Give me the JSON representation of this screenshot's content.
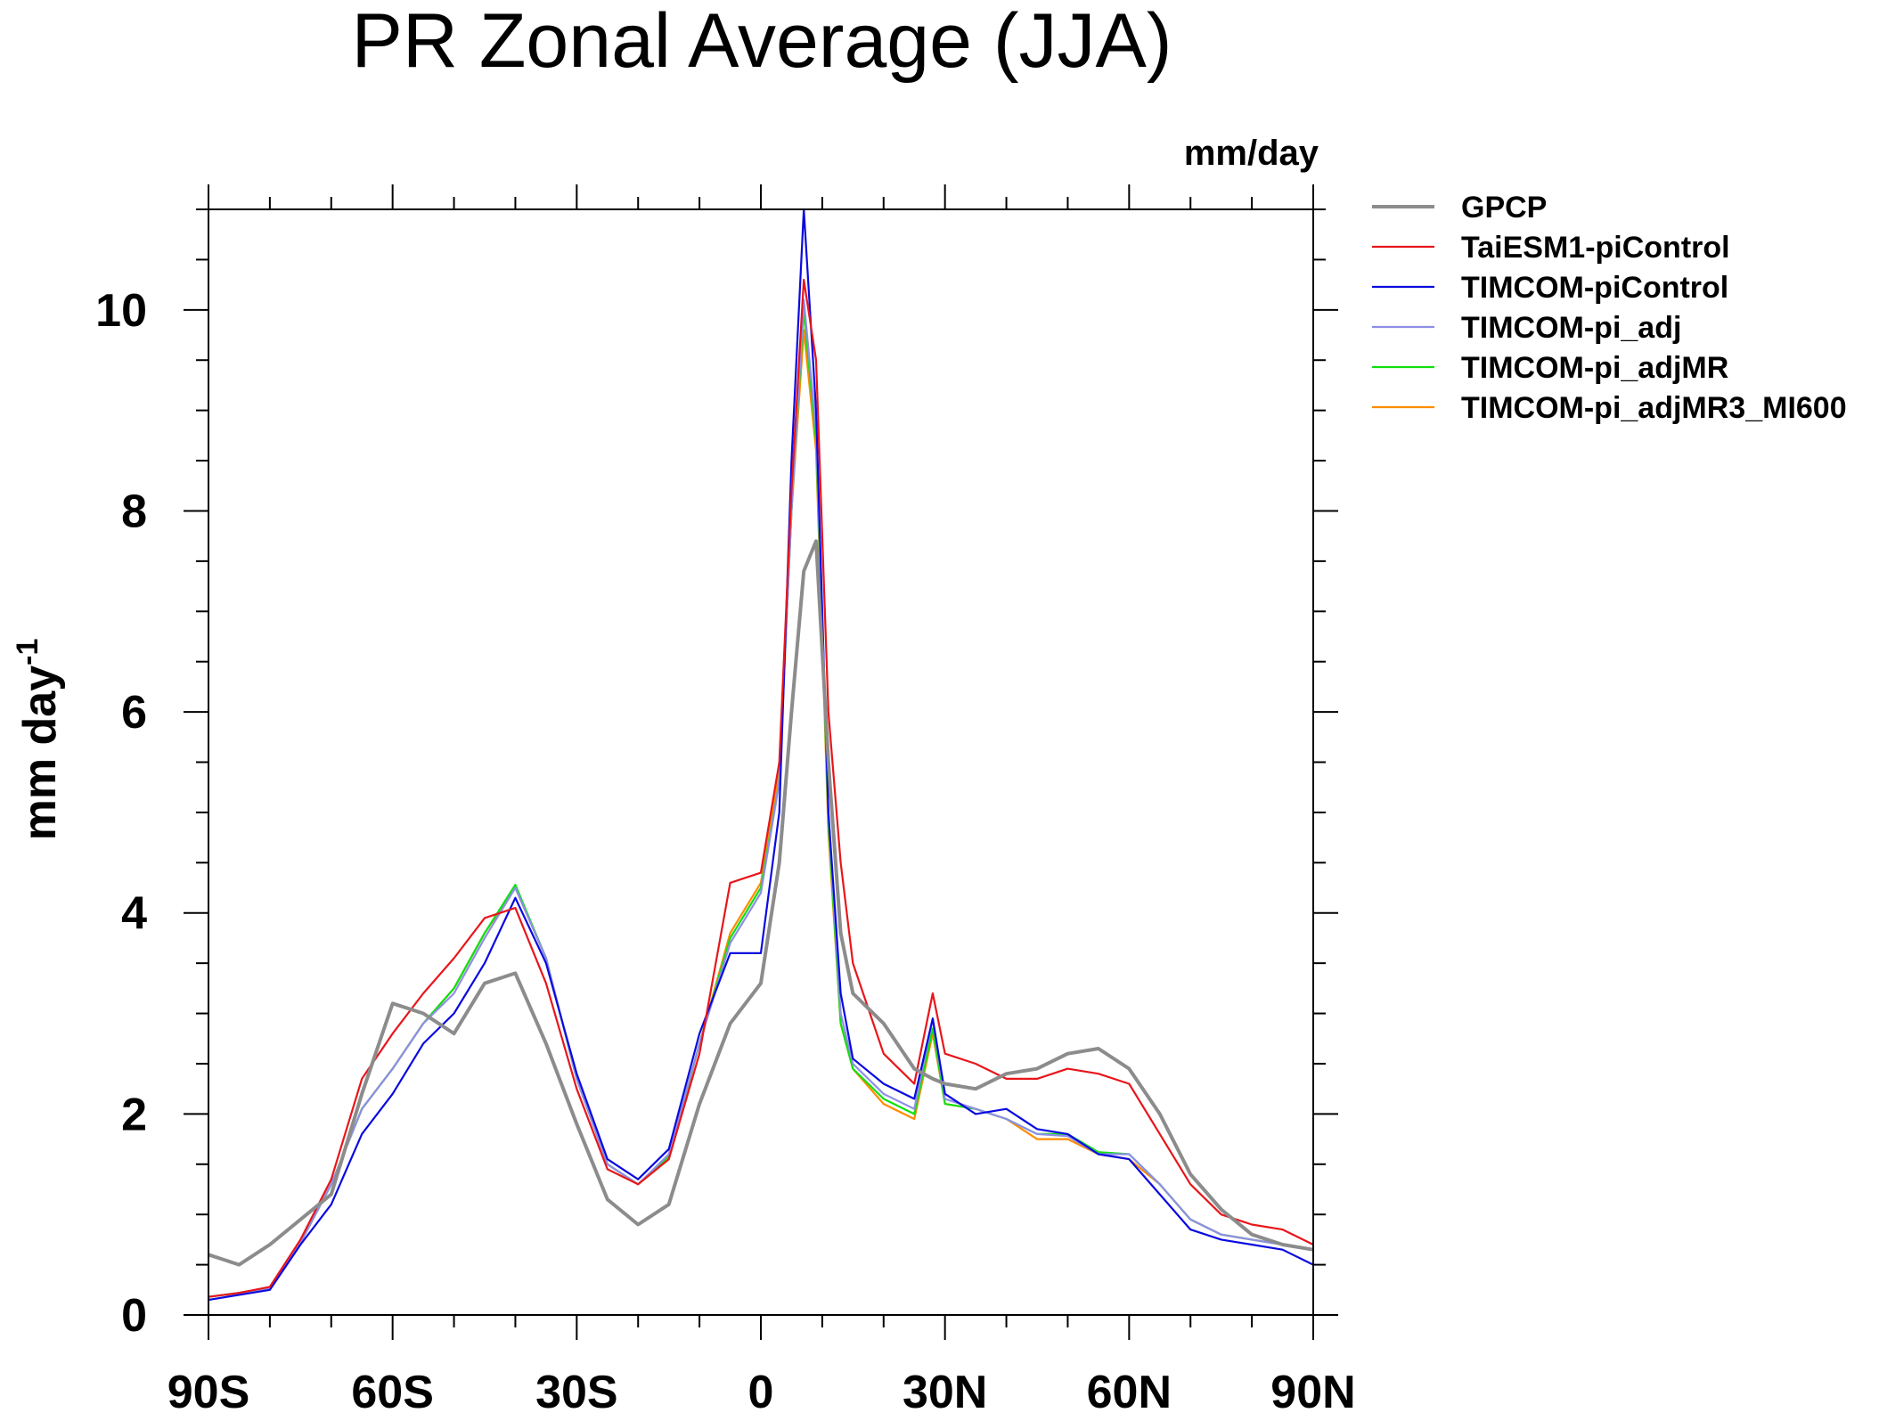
{
  "chart_data": {
    "type": "line",
    "title": "PR Zonal Average (JJA)",
    "units": "mm/day",
    "ylabel": "mm day",
    "ylabel_superscript": "-1",
    "xlim": [
      -90,
      90
    ],
    "ylim": [
      0,
      11
    ],
    "x_ticks": [
      {
        "value": -90,
        "label": "90S"
      },
      {
        "value": -60,
        "label": "60S"
      },
      {
        "value": -30,
        "label": "30S"
      },
      {
        "value": 0,
        "label": "0"
      },
      {
        "value": 30,
        "label": "30N"
      },
      {
        "value": 60,
        "label": "60N"
      },
      {
        "value": 90,
        "label": "90N"
      }
    ],
    "y_ticks": [
      {
        "value": 0,
        "label": "0"
      },
      {
        "value": 2,
        "label": "2"
      },
      {
        "value": 4,
        "label": "4"
      },
      {
        "value": 6,
        "label": "6"
      },
      {
        "value": 8,
        "label": "8"
      },
      {
        "value": 10,
        "label": "10"
      }
    ],
    "legend_position": "right",
    "x": [
      -90,
      -85,
      -80,
      -75,
      -70,
      -65,
      -60,
      -55,
      -50,
      -45,
      -40,
      -35,
      -30,
      -25,
      -20,
      -15,
      -10,
      -5,
      0,
      3,
      5,
      7,
      9,
      11,
      13,
      15,
      20,
      25,
      28,
      30,
      35,
      40,
      45,
      50,
      55,
      60,
      65,
      70,
      75,
      80,
      85,
      90
    ],
    "series": [
      {
        "name": "GPCP",
        "color": "#8c8c8c",
        "width": 4,
        "values": [
          0.6,
          0.5,
          0.7,
          0.95,
          1.2,
          2.2,
          3.1,
          3.0,
          2.8,
          3.3,
          3.4,
          2.7,
          1.9,
          1.15,
          0.9,
          1.1,
          2.1,
          2.9,
          3.3,
          4.5,
          6.0,
          7.4,
          7.7,
          5.5,
          3.8,
          3.2,
          2.9,
          2.45,
          2.35,
          2.3,
          2.25,
          2.4,
          2.45,
          2.6,
          2.65,
          2.45,
          2.0,
          1.4,
          1.05,
          0.8,
          0.7,
          0.65
        ]
      },
      {
        "name": "TaiESM1-piControl",
        "color": "#e8161b",
        "width": 2.2,
        "values": [
          0.18,
          0.22,
          0.28,
          0.75,
          1.35,
          2.35,
          2.8,
          3.2,
          3.55,
          3.95,
          4.05,
          3.3,
          2.25,
          1.45,
          1.3,
          1.55,
          2.6,
          4.3,
          4.4,
          5.5,
          8.2,
          10.3,
          9.5,
          6.0,
          4.5,
          3.5,
          2.6,
          2.3,
          3.2,
          2.6,
          2.5,
          2.35,
          2.35,
          2.45,
          2.4,
          2.3,
          1.8,
          1.3,
          1.0,
          0.9,
          0.85,
          0.7
        ]
      },
      {
        "name": "TIMCOM-piControl",
        "color": "#0a0ae0",
        "width": 2.2,
        "values": [
          0.15,
          0.2,
          0.25,
          0.7,
          1.1,
          1.8,
          2.2,
          2.7,
          3.0,
          3.5,
          4.15,
          3.5,
          2.4,
          1.55,
          1.35,
          1.65,
          2.8,
          3.6,
          3.6,
          5.0,
          8.5,
          11.0,
          9.0,
          5.0,
          3.2,
          2.55,
          2.3,
          2.15,
          2.95,
          2.2,
          2.0,
          2.05,
          1.85,
          1.8,
          1.6,
          1.55,
          1.2,
          0.85,
          0.75,
          0.7,
          0.65,
          0.5
        ]
      },
      {
        "name": "TIMCOM-pi_adj",
        "color": "#8e8ee8",
        "width": 2.2,
        "values": [
          0.18,
          0.22,
          0.27,
          0.72,
          1.3,
          2.05,
          2.45,
          2.9,
          3.2,
          3.75,
          4.25,
          3.55,
          2.35,
          1.5,
          1.3,
          1.6,
          2.7,
          3.7,
          4.2,
          5.3,
          8.0,
          10.1,
          8.8,
          5.0,
          3.0,
          2.5,
          2.2,
          2.05,
          2.95,
          2.15,
          2.05,
          1.95,
          1.8,
          1.78,
          1.6,
          1.6,
          1.3,
          0.95,
          0.8,
          0.75,
          0.7,
          0.65
        ]
      },
      {
        "name": "TIMCOM-pi_adjMR",
        "color": "#10e010",
        "width": 2.2,
        "values": [
          0.18,
          0.22,
          0.27,
          0.72,
          1.3,
          2.05,
          2.45,
          2.9,
          3.25,
          3.8,
          4.28,
          3.55,
          2.35,
          1.5,
          1.3,
          1.58,
          2.7,
          3.75,
          4.25,
          5.3,
          8.0,
          10.0,
          8.7,
          4.9,
          2.9,
          2.45,
          2.15,
          2.0,
          2.85,
          2.1,
          2.05,
          1.95,
          1.8,
          1.8,
          1.62,
          1.6,
          1.3,
          0.95,
          0.8,
          0.75,
          0.7,
          0.65
        ]
      },
      {
        "name": "TIMCOM-pi_adjMR3_MI600",
        "color": "#ff8c00",
        "width": 2.2,
        "values": [
          0.18,
          0.22,
          0.27,
          0.72,
          1.3,
          2.05,
          2.45,
          2.9,
          3.25,
          3.8,
          4.25,
          3.55,
          2.35,
          1.5,
          1.3,
          1.55,
          2.7,
          3.8,
          4.3,
          5.4,
          8.0,
          9.8,
          8.6,
          4.8,
          2.9,
          2.45,
          2.1,
          1.95,
          2.8,
          2.1,
          2.05,
          1.95,
          1.75,
          1.75,
          1.6,
          1.55,
          1.3,
          0.95,
          0.8,
          0.75,
          0.7,
          0.65
        ]
      }
    ]
  }
}
